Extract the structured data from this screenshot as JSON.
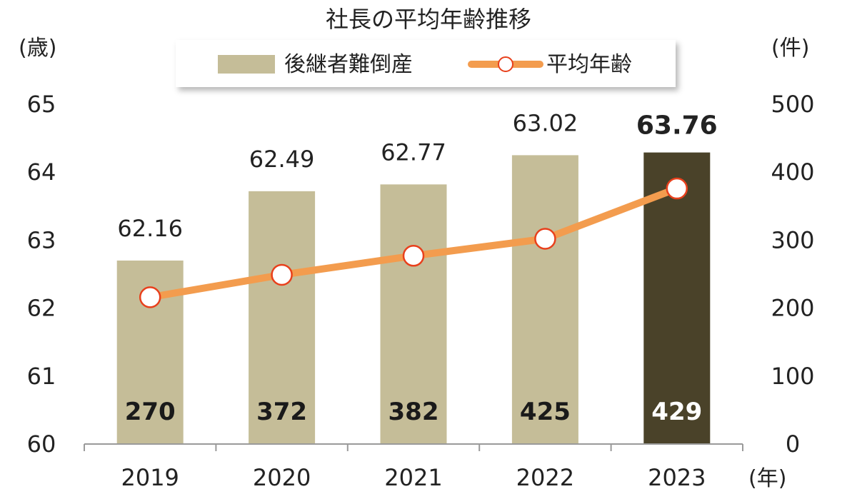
{
  "chart_data": {
    "type": "bar",
    "title": "社長の平均年齢推移",
    "categories": [
      "2019",
      "2020",
      "2021",
      "2022",
      "2023"
    ],
    "xlabel": "(年)",
    "y_left": {
      "unit_label": "(歳)",
      "range": [
        60,
        65
      ],
      "ticks": [
        "60",
        "61",
        "62",
        "63",
        "64",
        "65"
      ]
    },
    "y_right": {
      "unit_label": "(件)",
      "range": [
        0,
        500
      ],
      "ticks": [
        "0",
        "100",
        "200",
        "300",
        "400",
        "500"
      ]
    },
    "series": [
      {
        "name": "後継者難倒産",
        "kind": "bar",
        "axis": "right",
        "values": [
          270,
          372,
          382,
          425,
          429
        ],
        "labels": [
          "270",
          "372",
          "382",
          "425",
          "429"
        ]
      },
      {
        "name": "平均年齢",
        "kind": "line",
        "axis": "left",
        "values": [
          62.16,
          62.49,
          62.77,
          63.02,
          63.76
        ],
        "labels": [
          "62.16",
          "62.49",
          "62.77",
          "63.02",
          "63.76"
        ]
      }
    ],
    "highlight_index": 4,
    "legend_position": "top-center",
    "grid": false
  },
  "colors": {
    "bar": "#c5bd98",
    "bar_highlight": "#4a4229",
    "line": "#f39c4e",
    "marker_edge": "#e8401c",
    "marker_fill": "#ffffff",
    "highlight_text": "#e8401c",
    "count_text": "#1a1a1a",
    "count_text_highlight": "#ffffff",
    "axis": "#9a9a9a"
  }
}
